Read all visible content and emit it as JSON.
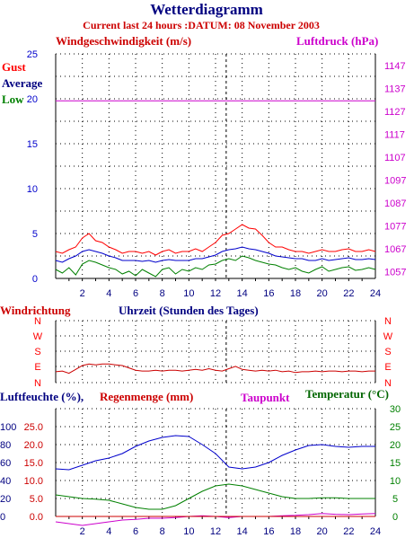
{
  "header": {
    "title": "Wetterdiagramm",
    "subtitle": "Current last 24 hours :DATUM: 08 November 2003"
  },
  "colors": {
    "navy": "#000080",
    "red": "#ff0000",
    "darkred": "#cc0000",
    "blue": "#0000cc",
    "green": "#008000",
    "magenta": "#cc00cc",
    "grid": "#000000"
  },
  "chart_data": [
    {
      "type": "line",
      "title": "",
      "left_axis_label": "Windgeschwindigkeit (m/s)",
      "right_axis_label": "Luftdruck (hPa)",
      "legend": [
        "Gust",
        "Average",
        "Low"
      ],
      "x": {
        "ticks": [
          "2",
          "4",
          "6",
          "8",
          "10",
          "12",
          "14",
          "16",
          "18",
          "20",
          "22",
          "24"
        ],
        "range": [
          0,
          24
        ]
      },
      "y_left": {
        "ticks": [
          "0",
          "5",
          "10",
          "15",
          "20",
          "25"
        ],
        "range": [
          0,
          25
        ]
      },
      "y_right": {
        "ticks": [
          "1057",
          "1067",
          "1077",
          "1087",
          "1097",
          "1107",
          "1117",
          "1127",
          "1137",
          "1147"
        ],
        "range": [
          1054,
          1152
        ]
      },
      "current_time_marker_hour": 12.8,
      "series": [
        {
          "name": "Gust",
          "x": [
            0,
            0.5,
            1,
            1.5,
            2,
            2.5,
            3,
            3.5,
            4,
            4.5,
            5,
            5.5,
            6,
            6.5,
            7,
            7.5,
            8,
            8.5,
            9,
            9.5,
            10,
            10.5,
            11,
            11.5,
            12,
            12.5,
            13,
            13.5,
            14,
            14.5,
            15,
            15.5,
            16,
            16.5,
            17,
            17.5,
            18,
            18.5,
            19,
            19.5,
            20,
            20.5,
            21,
            21.5,
            22,
            22.5,
            23,
            23.5,
            24
          ],
          "values": [
            3.0,
            2.8,
            3.2,
            3.5,
            4.5,
            5.0,
            4.2,
            4.0,
            3.5,
            3.2,
            2.8,
            3.0,
            3.0,
            2.8,
            3.0,
            2.6,
            3.0,
            3.2,
            2.8,
            3.0,
            3.0,
            3.3,
            3.0,
            3.5,
            4.0,
            4.8,
            5.0,
            5.5,
            6.0,
            5.6,
            5.5,
            4.8,
            4.0,
            3.5,
            3.5,
            3.2,
            3.0,
            3.0,
            2.8,
            3.0,
            3.2,
            3.0,
            3.0,
            3.2,
            3.3,
            3.0,
            3.0,
            3.2,
            3.0
          ]
        },
        {
          "name": "Average",
          "x": [
            0,
            0.5,
            1,
            1.5,
            2,
            2.5,
            3,
            3.5,
            4,
            4.5,
            5,
            5.5,
            6,
            6.5,
            7,
            7.5,
            8,
            8.5,
            9,
            9.5,
            10,
            10.5,
            11,
            11.5,
            12,
            12.5,
            13,
            13.5,
            14,
            14.5,
            15,
            15.5,
            16,
            16.5,
            17,
            17.5,
            18,
            18.5,
            19,
            19.5,
            20,
            20.5,
            21,
            21.5,
            22,
            22.5,
            23,
            23.5,
            24
          ],
          "values": [
            2.0,
            1.8,
            2.2,
            2.5,
            3.0,
            3.2,
            3.0,
            2.8,
            2.5,
            2.3,
            2.0,
            2.0,
            2.0,
            1.9,
            2.0,
            1.8,
            2.0,
            2.1,
            2.0,
            2.0,
            2.0,
            2.2,
            2.2,
            2.4,
            2.6,
            3.0,
            3.2,
            3.3,
            3.5,
            3.3,
            3.2,
            3.0,
            2.8,
            2.5,
            2.4,
            2.3,
            2.2,
            2.2,
            2.0,
            2.0,
            2.2,
            2.0,
            2.1,
            2.2,
            2.3,
            2.1,
            2.1,
            2.2,
            2.1
          ]
        },
        {
          "name": "Low",
          "x": [
            0,
            0.5,
            1,
            1.5,
            2,
            2.5,
            3,
            3.5,
            4,
            4.5,
            5,
            5.5,
            6,
            6.5,
            7,
            7.5,
            8,
            8.5,
            9,
            9.5,
            10,
            10.5,
            11,
            11.5,
            12,
            12.5,
            13,
            13.5,
            14,
            14.5,
            15,
            15.5,
            16,
            16.5,
            17,
            17.5,
            18,
            18.5,
            19,
            19.5,
            20,
            20.5,
            21,
            21.5,
            22,
            22.5,
            23,
            23.5,
            24
          ],
          "values": [
            1.0,
            0.6,
            1.2,
            0.4,
            1.6,
            2.0,
            1.8,
            1.5,
            1.2,
            1.0,
            0.5,
            0.8,
            0.3,
            1.0,
            0.6,
            0.2,
            1.0,
            1.2,
            0.5,
            1.0,
            0.8,
            1.2,
            1.0,
            1.5,
            1.6,
            2.0,
            2.2,
            2.0,
            2.5,
            2.3,
            2.0,
            1.8,
            1.6,
            1.5,
            1.2,
            1.0,
            1.2,
            0.8,
            0.6,
            1.0,
            1.3,
            0.8,
            1.0,
            1.2,
            1.3,
            0.9,
            1.0,
            1.2,
            1.0
          ]
        },
        {
          "name": "Luftdruck",
          "x": [
            0,
            24
          ],
          "values": [
            1131.5,
            1131.5
          ]
        }
      ]
    },
    {
      "type": "line",
      "title": "",
      "left_axis_label": "Windrichtung",
      "center_label": "Uhrzeit (Stunden des Tages)",
      "y_labels": [
        "N",
        "W",
        "S",
        "E",
        "N"
      ],
      "x": {
        "range": [
          0,
          24
        ]
      },
      "series": [
        {
          "name": "Windrichtung",
          "x": [
            0,
            0.5,
            1,
            1.5,
            2,
            2.5,
            3,
            3.5,
            4,
            4.5,
            5,
            5.5,
            6,
            6.5,
            7,
            7.5,
            8,
            8.5,
            9,
            9.5,
            10,
            10.5,
            11,
            11.5,
            12,
            12.5,
            13,
            13.5,
            14,
            14.5,
            15,
            15.5,
            16,
            16.5,
            17,
            17.5,
            18,
            18.5,
            19,
            19.5,
            20,
            20.5,
            21,
            21.5,
            22,
            22.5,
            23,
            23.5,
            24
          ],
          "values": [
            0.7,
            0.75,
            0.6,
            0.85,
            1.1,
            1.2,
            1.15,
            1.2,
            1.2,
            1.15,
            1.1,
            0.95,
            0.8,
            0.75,
            0.75,
            0.8,
            0.75,
            0.8,
            0.8,
            0.75,
            0.8,
            0.85,
            0.8,
            0.9,
            0.8,
            0.75,
            0.9,
            1.05,
            0.85,
            0.8,
            0.75,
            0.8,
            0.75,
            0.8,
            0.7,
            0.75,
            0.65,
            0.7,
            0.7,
            0.75,
            0.7,
            0.75,
            0.75,
            0.7,
            0.75,
            0.75,
            0.7,
            0.75,
            0.75
          ]
        }
      ]
    },
    {
      "type": "line",
      "title": "",
      "labels": [
        "Luftfeuchte (%),",
        "Regenmenge (mm)",
        "Taupunkt",
        "Temperatur (°C)"
      ],
      "x": {
        "ticks": [
          "2",
          "4",
          "6",
          "8",
          "10",
          "12",
          "14",
          "16",
          "18",
          "20",
          "22",
          "24"
        ],
        "range": [
          0,
          24
        ]
      },
      "y_left_humidity_ticks": [
        "0",
        "20",
        "40",
        "60",
        "80",
        "100"
      ],
      "y_left_rain_ticks": [
        "0.0",
        "5.0",
        "10.0",
        "15.0",
        "20.0",
        "25.0"
      ],
      "y_right_temp_ticks": [
        "0",
        "5",
        "10",
        "15",
        "20",
        "25",
        "30"
      ],
      "series": [
        {
          "name": "Luftfeuchte",
          "x": [
            0,
            1,
            2,
            3,
            4,
            5,
            6,
            7,
            8,
            9,
            10,
            11,
            12,
            13,
            14,
            15,
            16,
            17,
            18,
            19,
            20,
            21,
            22,
            23,
            24
          ],
          "values": [
            53,
            52,
            57,
            62,
            65,
            70,
            78,
            84,
            88,
            90,
            89,
            80,
            70,
            55,
            53,
            55,
            60,
            68,
            74,
            79,
            80,
            78,
            77,
            78,
            78
          ]
        },
        {
          "name": "Temperatur",
          "x": [
            0,
            1,
            2,
            3,
            4,
            5,
            6,
            7,
            8,
            9,
            10,
            11,
            12,
            13,
            14,
            15,
            16,
            17,
            18,
            19,
            20,
            21,
            22,
            23,
            24
          ],
          "values": [
            6.0,
            5.5,
            5.0,
            4.8,
            4.5,
            3.5,
            2.5,
            2.0,
            2.0,
            3.0,
            5.0,
            7.0,
            8.5,
            9.0,
            8.5,
            7.5,
            6.5,
            5.5,
            5.0,
            5.0,
            5.2,
            5.2,
            5.0,
            5.0,
            5.0
          ]
        },
        {
          "name": "Taupunkt",
          "x": [
            0,
            1,
            2,
            3,
            4,
            5,
            6,
            7,
            8,
            9,
            10,
            11,
            12,
            13,
            14,
            15,
            16,
            17,
            18,
            19,
            20,
            21,
            22,
            23,
            24
          ],
          "values": [
            -1.5,
            -2.0,
            -2.5,
            -2.0,
            -1.5,
            -1.0,
            -0.8,
            -0.5,
            -0.5,
            -0.3,
            0.0,
            0.2,
            0.0,
            -0.3,
            0.0,
            0.0,
            0.0,
            0.2,
            0.3,
            0.5,
            0.8,
            0.6,
            0.5,
            0.7,
            0.8
          ]
        },
        {
          "name": "Regenmenge",
          "x": [
            0,
            24
          ],
          "values": [
            0.0,
            0.0
          ]
        }
      ]
    }
  ]
}
